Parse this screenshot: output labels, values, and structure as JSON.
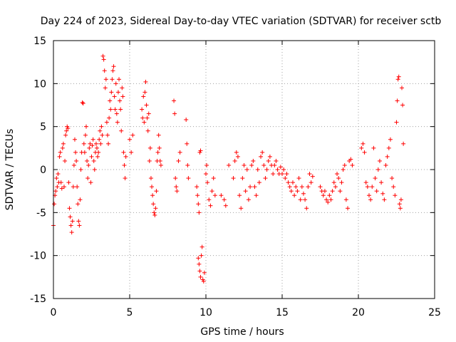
{
  "chart_data": {
    "type": "scatter",
    "title": "Day 224 of 2023, Sidereal Day-to-day VTEC variation (SDTVAR) for receiver sctb",
    "xlabel": "GPS time / hours",
    "ylabel": "SDTVAR / TECUs",
    "xlim": [
      0,
      25
    ],
    "ylim": [
      -15,
      15
    ],
    "xticks": [
      0,
      5,
      10,
      15,
      20,
      25
    ],
    "yticks": [
      -15,
      -10,
      -5,
      0,
      5,
      10,
      15
    ],
    "xtick_labels": [
      "0",
      "5",
      "10",
      "15",
      "20",
      "25"
    ],
    "ytick_labels": [
      "-15",
      "-10",
      "-5",
      "0",
      "5",
      "10",
      "15"
    ],
    "grid": true,
    "marker": "plus",
    "color": "#ff0000",
    "series": [
      {
        "name": "sctb",
        "points": [
          [
            0.0,
            -6.5
          ],
          [
            0.05,
            -4.0
          ],
          [
            0.1,
            -3.0
          ],
          [
            0.15,
            -2.5
          ],
          [
            0.2,
            -1.0
          ],
          [
            0.25,
            -2.0
          ],
          [
            0.3,
            -0.5
          ],
          [
            0.35,
            -1.5
          ],
          [
            0.4,
            1.5
          ],
          [
            0.45,
            2.0
          ],
          [
            0.5,
            -1.5
          ],
          [
            0.55,
            -2.2
          ],
          [
            0.6,
            2.5
          ],
          [
            0.65,
            3.0
          ],
          [
            0.7,
            -2.0
          ],
          [
            0.75,
            1.0
          ],
          [
            0.8,
            4.0
          ],
          [
            0.85,
            4.5
          ],
          [
            0.9,
            5.0
          ],
          [
            0.95,
            4.8
          ],
          [
            1.0,
            -1.5
          ],
          [
            1.05,
            -4.5
          ],
          [
            1.1,
            -5.5
          ],
          [
            1.15,
            -6.5
          ],
          [
            1.2,
            -7.3
          ],
          [
            1.25,
            -6.0
          ],
          [
            1.3,
            -2.0
          ],
          [
            1.35,
            0.5
          ],
          [
            1.4,
            3.5
          ],
          [
            1.45,
            2.0
          ],
          [
            1.5,
            1.0
          ],
          [
            1.55,
            -2.0
          ],
          [
            1.6,
            -4.0
          ],
          [
            1.65,
            -6.0
          ],
          [
            1.7,
            -6.5
          ],
          [
            1.75,
            -3.5
          ],
          [
            1.8,
            0.0
          ],
          [
            1.85,
            2.0
          ],
          [
            1.9,
            7.8
          ],
          [
            1.95,
            7.7
          ],
          [
            2.0,
            3.0
          ],
          [
            2.05,
            2.0
          ],
          [
            2.1,
            4.0
          ],
          [
            2.15,
            5.0
          ],
          [
            2.2,
            1.0
          ],
          [
            2.25,
            -1.0
          ],
          [
            2.3,
            0.5
          ],
          [
            2.35,
            2.5
          ],
          [
            2.4,
            3.0
          ],
          [
            2.45,
            -1.5
          ],
          [
            2.5,
            1.5
          ],
          [
            2.55,
            2.8
          ],
          [
            2.6,
            3.5
          ],
          [
            2.65,
            1.0
          ],
          [
            2.7,
            0.0
          ],
          [
            2.75,
            2.0
          ],
          [
            2.8,
            3.0
          ],
          [
            2.85,
            2.5
          ],
          [
            2.9,
            1.5
          ],
          [
            2.95,
            2.0
          ],
          [
            3.0,
            3.5
          ],
          [
            3.05,
            4.5
          ],
          [
            3.1,
            3.0
          ],
          [
            3.15,
            5.0
          ],
          [
            3.2,
            4.0
          ],
          [
            3.25,
            13.2
          ],
          [
            3.3,
            12.8
          ],
          [
            3.35,
            11.5
          ],
          [
            3.4,
            9.5
          ],
          [
            3.45,
            10.5
          ],
          [
            3.5,
            5.5
          ],
          [
            3.55,
            4.0
          ],
          [
            3.6,
            3.0
          ],
          [
            3.65,
            6.0
          ],
          [
            3.7,
            8.0
          ],
          [
            3.75,
            7.0
          ],
          [
            3.8,
            9.0
          ],
          [
            3.85,
            10.5
          ],
          [
            3.9,
            11.5
          ],
          [
            3.95,
            12.0
          ],
          [
            4.0,
            8.5
          ],
          [
            4.05,
            7.0
          ],
          [
            4.1,
            10.0
          ],
          [
            4.15,
            6.5
          ],
          [
            4.2,
            5.5
          ],
          [
            4.25,
            9.0
          ],
          [
            4.3,
            10.5
          ],
          [
            4.35,
            8.0
          ],
          [
            4.4,
            7.0
          ],
          [
            4.45,
            4.5
          ],
          [
            4.5,
            9.5
          ],
          [
            4.55,
            8.5
          ],
          [
            4.6,
            2.0
          ],
          [
            4.65,
            0.5
          ],
          [
            4.7,
            -1.0
          ],
          [
            4.75,
            1.5
          ],
          [
            5.0,
            3.5
          ],
          [
            5.1,
            2.0
          ],
          [
            5.2,
            4.0
          ],
          [
            5.8,
            7.0
          ],
          [
            5.85,
            6.0
          ],
          [
            5.9,
            8.5
          ],
          [
            5.95,
            5.5
          ],
          [
            6.0,
            9.0
          ],
          [
            6.05,
            10.2
          ],
          [
            6.1,
            7.5
          ],
          [
            6.15,
            6.0
          ],
          [
            6.2,
            4.5
          ],
          [
            6.25,
            6.5
          ],
          [
            6.3,
            1.0
          ],
          [
            6.35,
            2.5
          ],
          [
            6.4,
            -1.0
          ],
          [
            6.45,
            -2.0
          ],
          [
            6.5,
            -3.0
          ],
          [
            6.55,
            -4.0
          ],
          [
            6.6,
            -5.0
          ],
          [
            6.65,
            -5.3
          ],
          [
            6.7,
            -4.5
          ],
          [
            6.75,
            -2.5
          ],
          [
            6.8,
            1.0
          ],
          [
            6.85,
            2.0
          ],
          [
            6.9,
            4.0
          ],
          [
            6.95,
            2.5
          ],
          [
            7.0,
            1.0
          ],
          [
            7.05,
            0.5
          ],
          [
            7.9,
            8.0
          ],
          [
            7.95,
            6.5
          ],
          [
            8.0,
            -1.0
          ],
          [
            8.05,
            -2.0
          ],
          [
            8.1,
            -2.5
          ],
          [
            8.2,
            1.0
          ],
          [
            8.3,
            2.0
          ],
          [
            8.7,
            5.8
          ],
          [
            8.75,
            3.0
          ],
          [
            8.8,
            0.5
          ],
          [
            8.85,
            -1.0
          ],
          [
            9.4,
            -2.0
          ],
          [
            9.45,
            -3.0
          ],
          [
            9.5,
            -4.0
          ],
          [
            9.55,
            -5.0
          ],
          [
            9.6,
            2.0
          ],
          [
            9.65,
            2.2
          ],
          [
            9.5,
            -10.3
          ],
          [
            9.55,
            -11.0
          ],
          [
            9.6,
            -11.8
          ],
          [
            9.65,
            -12.5
          ],
          [
            9.7,
            -10.0
          ],
          [
            9.75,
            -9.0
          ],
          [
            9.8,
            -12.8
          ],
          [
            9.85,
            -13.0
          ],
          [
            9.9,
            -12.0
          ],
          [
            10.0,
            -0.5
          ],
          [
            10.05,
            0.5
          ],
          [
            10.1,
            -1.5
          ],
          [
            10.2,
            -3.5
          ],
          [
            10.3,
            -4.2
          ],
          [
            10.4,
            -2.5
          ],
          [
            10.5,
            -1.0
          ],
          [
            10.6,
            -3.0
          ],
          [
            11.0,
            -3.0
          ],
          [
            11.2,
            -3.5
          ],
          [
            11.3,
            -4.2
          ],
          [
            11.5,
            0.5
          ],
          [
            11.8,
            -1.0
          ],
          [
            11.9,
            1.0
          ],
          [
            12.0,
            2.0
          ],
          [
            12.1,
            1.5
          ],
          [
            12.2,
            -3.0
          ],
          [
            12.3,
            -4.5
          ],
          [
            12.4,
            -1.0
          ],
          [
            12.5,
            0.5
          ],
          [
            12.6,
            -2.5
          ],
          [
            12.7,
            0.0
          ],
          [
            12.8,
            -3.5
          ],
          [
            12.9,
            -2.0
          ],
          [
            13.0,
            0.5
          ],
          [
            13.1,
            1.0
          ],
          [
            13.2,
            -2.0
          ],
          [
            13.3,
            -3.0
          ],
          [
            13.4,
            0.0
          ],
          [
            13.5,
            -1.5
          ],
          [
            13.6,
            1.5
          ],
          [
            13.7,
            2.0
          ],
          [
            13.8,
            0.5
          ],
          [
            13.9,
            -1.0
          ],
          [
            14.0,
            0.0
          ],
          [
            14.1,
            1.0
          ],
          [
            14.2,
            1.5
          ],
          [
            14.3,
            0.5
          ],
          [
            14.4,
            -0.5
          ],
          [
            14.5,
            0.5
          ],
          [
            14.6,
            1.0
          ],
          [
            14.7,
            0.0
          ],
          [
            14.8,
            -0.5
          ],
          [
            14.9,
            0.3
          ],
          [
            15.0,
            -0.5
          ],
          [
            15.1,
            0.0
          ],
          [
            15.2,
            -1.0
          ],
          [
            15.3,
            -0.5
          ],
          [
            15.4,
            -1.5
          ],
          [
            15.5,
            -2.0
          ],
          [
            15.6,
            -2.5
          ],
          [
            15.7,
            -1.5
          ],
          [
            15.8,
            -3.0
          ],
          [
            15.9,
            -2.0
          ],
          [
            16.0,
            -2.5
          ],
          [
            16.1,
            -1.0
          ],
          [
            16.2,
            -3.5
          ],
          [
            16.3,
            -2.0
          ],
          [
            16.4,
            -2.8
          ],
          [
            16.5,
            -3.5
          ],
          [
            16.6,
            -4.5
          ],
          [
            16.7,
            -2.0
          ],
          [
            16.8,
            -0.5
          ],
          [
            16.9,
            -1.5
          ],
          [
            17.0,
            -0.8
          ],
          [
            17.5,
            -2.0
          ],
          [
            17.6,
            -2.5
          ],
          [
            17.7,
            -3.0
          ],
          [
            17.8,
            -2.5
          ],
          [
            17.9,
            -3.5
          ],
          [
            18.0,
            -3.8
          ],
          [
            18.1,
            -3.0
          ],
          [
            18.2,
            -3.5
          ],
          [
            18.3,
            -2.5
          ],
          [
            18.4,
            -1.5
          ],
          [
            18.5,
            -2.0
          ],
          [
            18.6,
            -0.5
          ],
          [
            18.7,
            -1.0
          ],
          [
            18.8,
            -2.5
          ],
          [
            18.9,
            -1.5
          ],
          [
            19.0,
            0.0
          ],
          [
            19.1,
            0.5
          ],
          [
            19.2,
            -3.5
          ],
          [
            19.3,
            -4.5
          ],
          [
            19.4,
            1.0
          ],
          [
            19.5,
            1.2
          ],
          [
            19.6,
            0.5
          ],
          [
            20.2,
            2.5
          ],
          [
            20.3,
            3.0
          ],
          [
            20.4,
            2.0
          ],
          [
            20.5,
            -1.5
          ],
          [
            20.6,
            -2.0
          ],
          [
            20.7,
            -3.0
          ],
          [
            20.8,
            -3.5
          ],
          [
            20.9,
            -2.0
          ],
          [
            21.0,
            2.5
          ],
          [
            21.1,
            -1.0
          ],
          [
            21.2,
            -2.5
          ],
          [
            21.3,
            0.0
          ],
          [
            21.4,
            1.0
          ],
          [
            21.5,
            -1.5
          ],
          [
            21.6,
            -2.8
          ],
          [
            21.7,
            -3.5
          ],
          [
            21.8,
            0.5
          ],
          [
            21.9,
            1.5
          ],
          [
            22.0,
            2.5
          ],
          [
            22.1,
            3.5
          ],
          [
            22.2,
            -1.0
          ],
          [
            22.3,
            -2.0
          ],
          [
            22.4,
            -3.0
          ],
          [
            22.5,
            5.5
          ],
          [
            22.55,
            8.0
          ],
          [
            22.6,
            10.5
          ],
          [
            22.65,
            10.8
          ],
          [
            22.7,
            -4.0
          ],
          [
            22.75,
            -4.5
          ],
          [
            22.8,
            -3.5
          ],
          [
            22.85,
            9.5
          ],
          [
            22.9,
            7.5
          ],
          [
            22.95,
            3.0
          ]
        ]
      }
    ]
  }
}
